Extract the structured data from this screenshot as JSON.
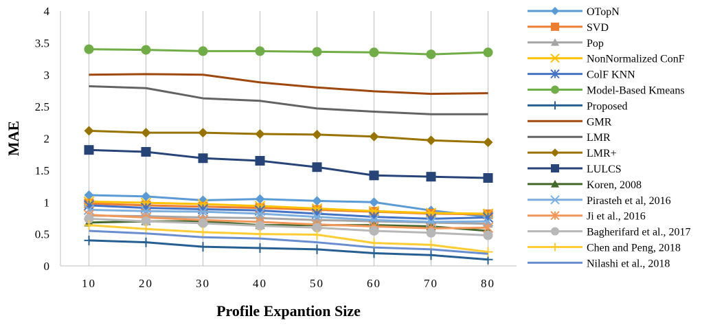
{
  "chart_data": {
    "type": "line",
    "xlabel": "Profile Expantion Size",
    "ylabel": "MAE",
    "ylim": [
      0,
      4
    ],
    "yticks": [
      "0",
      "0.5",
      "1",
      "1.5",
      "2",
      "2.5",
      "3",
      "3.5",
      "4"
    ],
    "categories": [
      "10",
      "20",
      "30",
      "40",
      "50",
      "60",
      "70",
      "80"
    ],
    "grid": "vertical",
    "legend_position": "right",
    "series": [
      {
        "name": "OTopN",
        "color": "#5b9bd5",
        "marker": "diamond",
        "values": [
          1.11,
          1.09,
          1.03,
          1.05,
          1.02,
          1.0,
          0.87,
          0.77
        ]
      },
      {
        "name": "SVD",
        "color": "#ed7d31",
        "marker": "square",
        "values": [
          0.98,
          0.95,
          0.93,
          0.91,
          0.88,
          0.85,
          0.82,
          0.81
        ]
      },
      {
        "name": "Pop",
        "color": "#a5a5a5",
        "marker": "triangle",
        "values": [
          0.79,
          0.78,
          0.76,
          0.75,
          0.72,
          0.7,
          0.68,
          0.66
        ]
      },
      {
        "name": "NonNormalized ConF",
        "color": "#ffc000",
        "marker": "x",
        "values": [
          1.01,
          0.99,
          0.97,
          0.94,
          0.9,
          0.86,
          0.83,
          0.82
        ]
      },
      {
        "name": "ColF KNN",
        "color": "#4472c4",
        "marker": "star",
        "values": [
          0.95,
          0.91,
          0.89,
          0.87,
          0.82,
          0.77,
          0.74,
          0.76
        ]
      },
      {
        "name": "Model-Based Kmeans",
        "color": "#70ad47",
        "marker": "circle",
        "values": [
          3.4,
          3.39,
          3.37,
          3.37,
          3.36,
          3.35,
          3.32,
          3.35
        ]
      },
      {
        "name": "Proposed",
        "color": "#255e91",
        "marker": "plus",
        "values": [
          0.4,
          0.37,
          0.3,
          0.28,
          0.26,
          0.2,
          0.17,
          0.1
        ]
      },
      {
        "name": "GMR",
        "color": "#9e480e",
        "marker": "none",
        "values": [
          3.0,
          3.01,
          3.0,
          2.88,
          2.8,
          2.74,
          2.7,
          2.71
        ]
      },
      {
        "name": "LMR",
        "color": "#636363",
        "marker": "none",
        "values": [
          2.82,
          2.79,
          2.63,
          2.59,
          2.47,
          2.42,
          2.38,
          2.38
        ]
      },
      {
        "name": "LMR+",
        "color": "#997300",
        "marker": "diamond",
        "values": [
          2.12,
          2.09,
          2.09,
          2.07,
          2.06,
          2.03,
          1.97,
          1.94
        ]
      },
      {
        "name": "LULCS",
        "color": "#264478",
        "marker": "square",
        "values": [
          1.82,
          1.79,
          1.69,
          1.65,
          1.55,
          1.42,
          1.4,
          1.38
        ]
      },
      {
        "name": "Koren, 2008",
        "color": "#43682b",
        "marker": "triangle",
        "values": [
          0.68,
          0.7,
          0.7,
          0.64,
          0.64,
          0.64,
          0.62,
          0.55
        ]
      },
      {
        "name": "Pirasteh et al, 2016",
        "color": "#7cafdd",
        "marker": "x",
        "values": [
          0.88,
          0.86,
          0.85,
          0.82,
          0.77,
          0.72,
          0.69,
          0.7
        ]
      },
      {
        "name": "Ji et al., 2016",
        "color": "#f1975a",
        "marker": "star",
        "values": [
          0.8,
          0.76,
          0.72,
          0.69,
          0.65,
          0.62,
          0.59,
          0.6
        ]
      },
      {
        "name": "Bagherifard et al., 2017",
        "color": "#b7b7b7",
        "marker": "circle",
        "values": [
          0.74,
          0.7,
          0.67,
          0.63,
          0.6,
          0.55,
          0.52,
          0.48
        ]
      },
      {
        "name": "Chen and Peng, 2018",
        "color": "#ffcd33",
        "marker": "plus",
        "values": [
          0.64,
          0.58,
          0.53,
          0.5,
          0.49,
          0.36,
          0.33,
          0.22
        ]
      },
      {
        "name": "Nilashi et al., 2018",
        "color": "#698ed0",
        "marker": "none",
        "values": [
          0.55,
          0.51,
          0.45,
          0.43,
          0.37,
          0.29,
          0.26,
          0.19
        ]
      }
    ]
  }
}
